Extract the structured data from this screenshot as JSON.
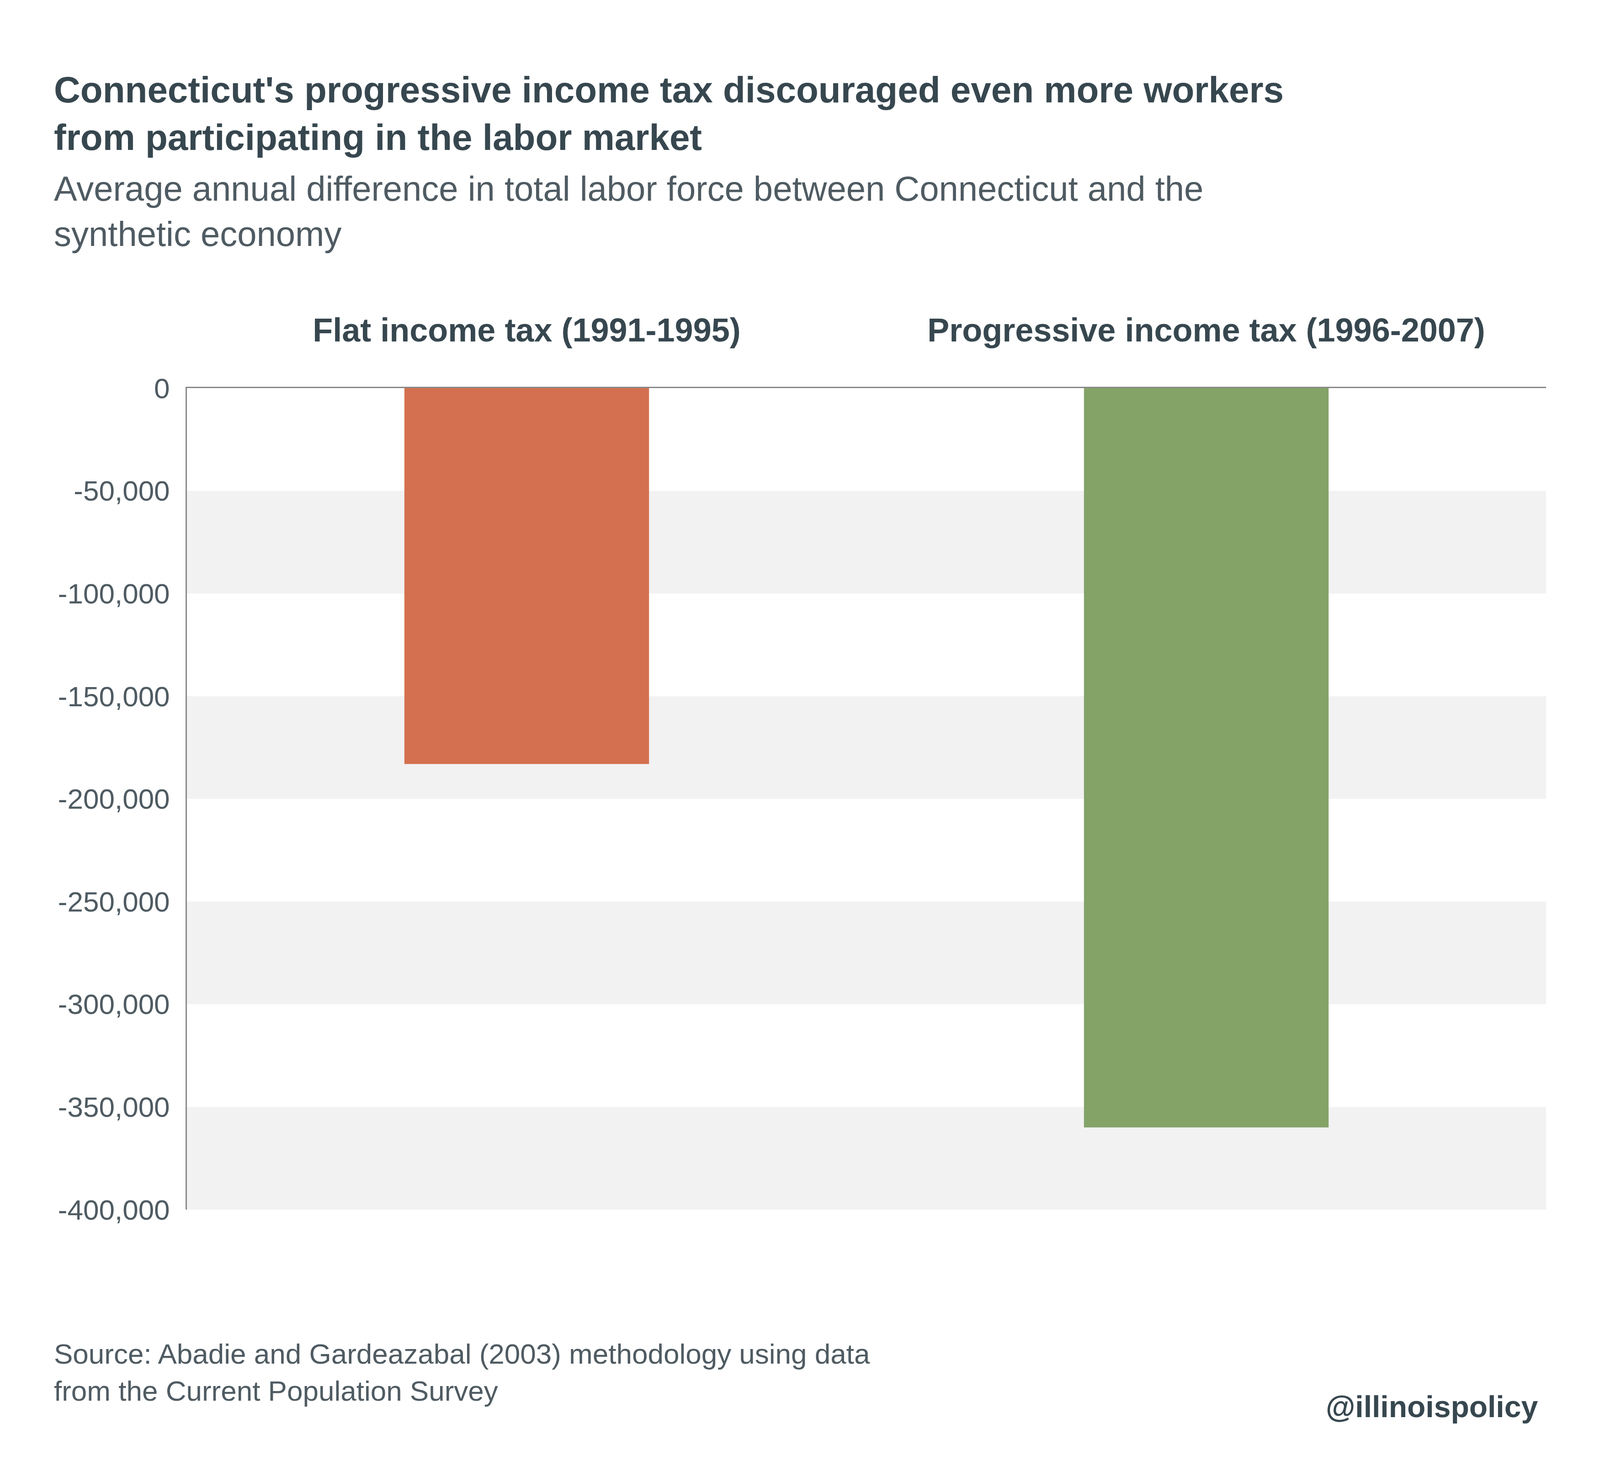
{
  "chart_data": {
    "type": "bar",
    "title": "Connecticut's progressive income tax discouraged even more workers\nfrom participating in the labor market",
    "subtitle": "Average annual difference in total labor force between Connecticut and the\nsynthetic economy",
    "categories": [
      "Flat income tax (1991-1995)",
      "Progressive income tax (1996-2007)"
    ],
    "values": [
      -183000,
      -360000
    ],
    "colors": [
      "#d4704f",
      "#84a367"
    ],
    "ylim": [
      -400000,
      0
    ],
    "yticks": [
      0,
      {
        "value": -50000,
        "label": "-50,000"
      },
      {
        "value": -100000,
        "label": "-100,000"
      },
      {
        "value": -150000,
        "label": "-150,000"
      },
      {
        "value": -200000,
        "label": "-200,000"
      },
      {
        "value": -250000,
        "label": "-250,000"
      },
      {
        "value": -300000,
        "label": "-300,000"
      },
      {
        "value": -350000,
        "label": "-350,000"
      },
      {
        "value": -400000,
        "label": "-400,000"
      }
    ],
    "grid": true,
    "source": "Source: Abadie and Gardeazabal (2003) methodology using data\nfrom the Current Population Survey",
    "credit": "@illinoispolicy"
  }
}
